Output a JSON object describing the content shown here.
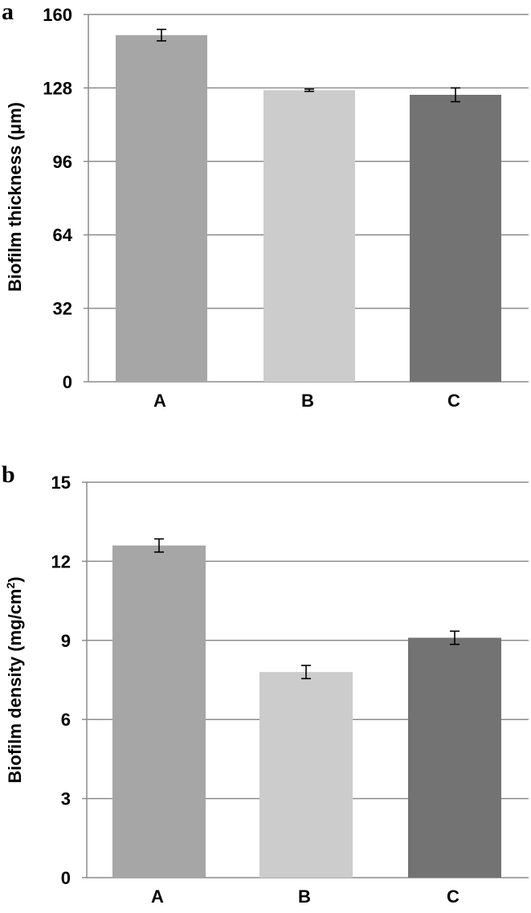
{
  "chart_data": [
    {
      "panel_label": "a",
      "type": "bar",
      "categories": [
        "A",
        "B",
        "C"
      ],
      "values": [
        151,
        127,
        125
      ],
      "errors": [
        2.5,
        0.5,
        3
      ],
      "colors": [
        "#a6a6a6",
        "#cccccc",
        "#737373"
      ],
      "ylabel": "Biofilm thickness (μm)",
      "ylim": [
        0,
        160
      ],
      "yticks": [
        "0",
        "32",
        "64",
        "96",
        "128",
        "160"
      ],
      "grid": true
    },
    {
      "panel_label": "b",
      "type": "bar",
      "categories": [
        "A",
        "B",
        "C"
      ],
      "values": [
        12.6,
        7.8,
        9.1
      ],
      "errors": [
        0.25,
        0.25,
        0.25
      ],
      "colors": [
        "#a6a6a6",
        "#cccccc",
        "#737373"
      ],
      "ylabel_main": "Biofilm density (mg/cm",
      "ylabel_sup": "2",
      "ylabel_end": ")",
      "ylim": [
        0,
        15
      ],
      "yticks": [
        "0",
        "3",
        "6",
        "9",
        "12",
        "15"
      ],
      "grid": true
    }
  ]
}
